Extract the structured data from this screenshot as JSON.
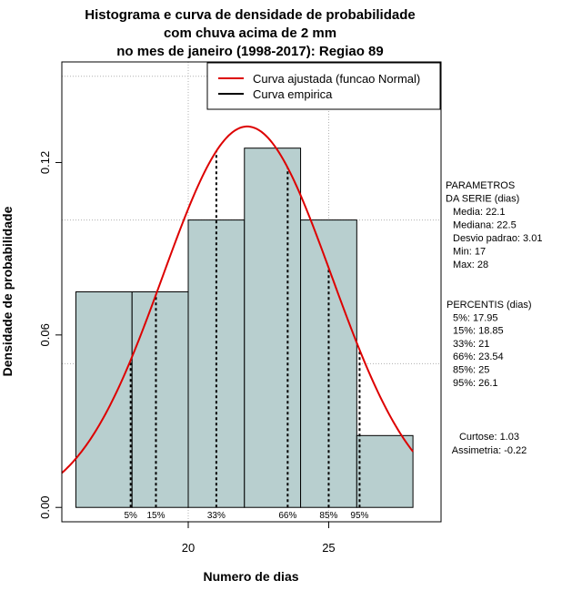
{
  "chart_data": {
    "type": "bar",
    "title_lines": [
      "Histograma e curva de densidade de probabilidade",
      "com chuva acima de 2 mm",
      "no mes de janeiro (1998-2017): Regiao 89"
    ],
    "xlabel": "Numero de dias",
    "ylabel": "Densidade de probabilidade",
    "xlim": [
      15.5,
      29.0
    ],
    "ylim": [
      -0.005,
      0.155
    ],
    "x_ticks": [
      20,
      25
    ],
    "y_ticks": [
      0.0,
      0.06,
      0.12
    ],
    "y_tick_labels": [
      "0.00",
      "0.06",
      "0.12"
    ],
    "grid": true,
    "grid_x": [
      20,
      25
    ],
    "grid_y": [
      0.05,
      0.1,
      0.15
    ],
    "bins": [
      {
        "from": 16,
        "to": 18,
        "density": 0.075
      },
      {
        "from": 18,
        "to": 20,
        "density": 0.075
      },
      {
        "from": 20,
        "to": 22,
        "density": 0.1
      },
      {
        "from": 22,
        "to": 24,
        "density": 0.125
      },
      {
        "from": 24,
        "to": 26,
        "density": 0.1
      },
      {
        "from": 26,
        "to": 28,
        "density": 0.025
      }
    ],
    "bar_color": "#b8cfcf",
    "normal_curve": {
      "mean": 22.1,
      "sd": 3.01,
      "color": "#dd0000"
    },
    "percentiles": [
      {
        "label": "5%",
        "value": 17.95
      },
      {
        "label": "15%",
        "value": 18.85
      },
      {
        "label": "33%",
        "value": 21
      },
      {
        "label": "66%",
        "value": 23.54
      },
      {
        "label": "85%",
        "value": 25
      },
      {
        "label": "95%",
        "value": 26.1
      }
    ],
    "legend": {
      "placement": "top-right",
      "entries": [
        {
          "name": "Curva ajustada (funcao Normal)",
          "color": "#dd0000"
        },
        {
          "name": "Curva empirica",
          "color": "#000000"
        }
      ]
    }
  },
  "side_panel": {
    "params_lines": [
      "PARAMETROS",
      "DA SERIE (dias)",
      "Media: 22.1",
      "Mediana: 22.5",
      "Desvio padrao: 3.01",
      "Min: 17",
      "Max: 28"
    ],
    "percentis_lines": [
      "PERCENTIS (dias)",
      "5%: 17.95",
      "15%: 18.85",
      "33%: 21",
      "66%: 23.54",
      "85%: 25",
      "95%: 26.1"
    ],
    "stats_lines": [
      "Curtose: 1.03",
      "Assimetria: -0.22"
    ]
  }
}
